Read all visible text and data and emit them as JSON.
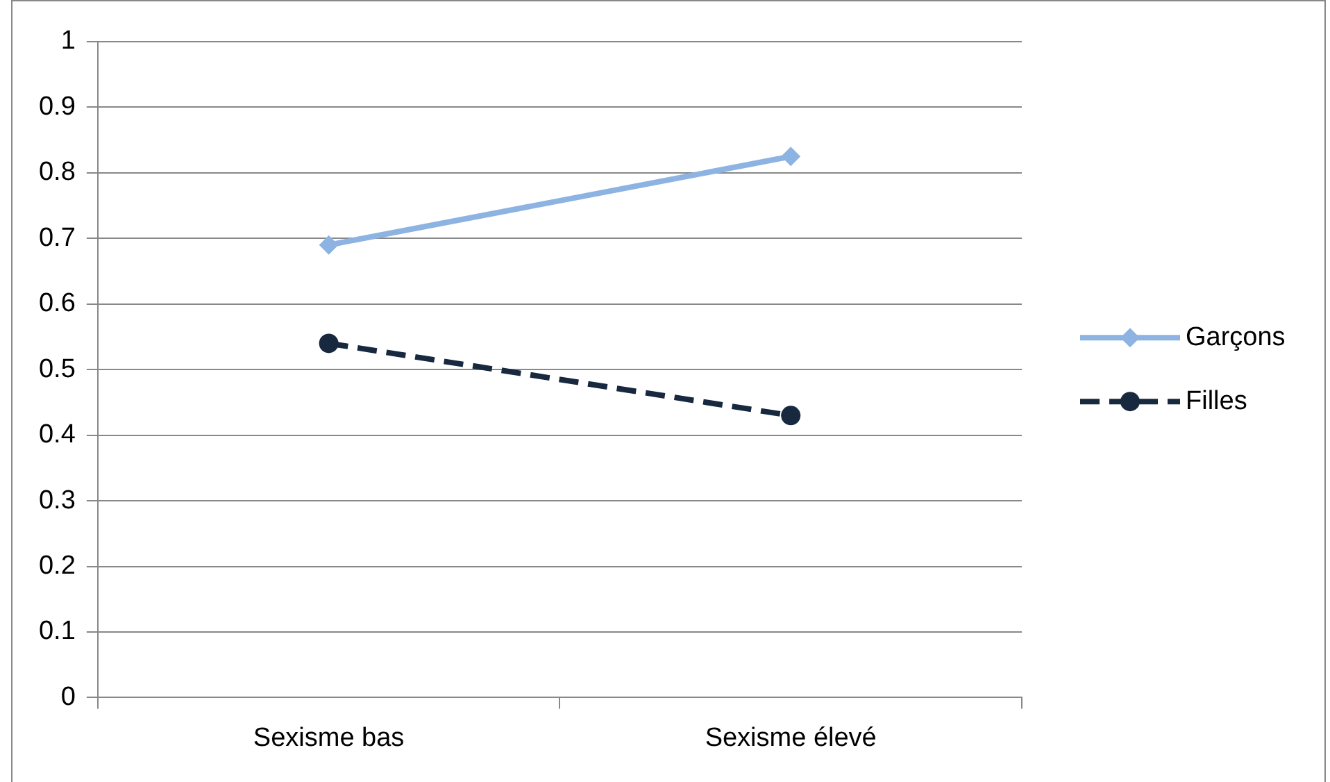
{
  "chart_data": {
    "type": "line",
    "categories": [
      "Sexisme bas",
      "Sexisme élevé"
    ],
    "series": [
      {
        "name": "Garçons",
        "color": "#8db3e2",
        "values": [
          0.69,
          0.825
        ],
        "marker": "diamond",
        "line_style": "solid"
      },
      {
        "name": "Filles",
        "color": "#17283f",
        "values": [
          0.54,
          0.43
        ],
        "marker": "circle",
        "line_style": "dashed"
      }
    ],
    "ylim": [
      0,
      1
    ],
    "yticks": [
      0,
      0.1,
      0.2,
      0.3,
      0.4,
      0.5,
      0.6,
      0.7,
      0.8,
      0.9,
      1
    ],
    "grid": "y",
    "legend": "right"
  }
}
